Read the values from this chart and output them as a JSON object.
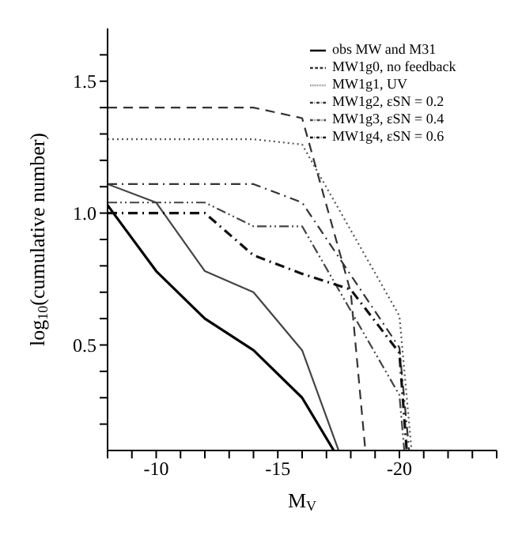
{
  "chart_data": {
    "type": "line",
    "xlabel": "M$_{V}$",
    "ylabel": "log$_{10}$(cumulative number)",
    "xlim": [
      -8,
      -24
    ],
    "ylim": [
      0.1,
      1.7
    ],
    "xticks": [
      {
        "value": -8,
        "label": null
      },
      {
        "value": -9,
        "label": null
      },
      -10,
      {
        "value": -11,
        "label": null
      },
      {
        "value": -12,
        "label": null
      },
      {
        "value": -13,
        "label": null
      },
      {
        "value": -14,
        "label": null
      },
      -15,
      {
        "value": -16,
        "label": null
      },
      {
        "value": -17,
        "label": null
      },
      {
        "value": -18,
        "label": null
      },
      {
        "value": -19,
        "label": null
      },
      -20,
      {
        "value": -21,
        "label": null
      },
      {
        "value": -22,
        "label": null
      },
      {
        "value": -23,
        "label": null
      },
      {
        "value": -24,
        "label": null
      }
    ],
    "yticks": [
      {
        "value": 0.2,
        "label": null
      },
      {
        "value": 0.3,
        "label": null
      },
      {
        "value": 0.4,
        "label": null
      },
      0.5,
      {
        "value": 0.6,
        "label": null
      },
      {
        "value": 0.7,
        "label": null
      },
      {
        "value": 0.8,
        "label": null
      },
      {
        "value": 0.9,
        "label": null
      },
      {
        "value": 1,
        "label": "1.0"
      },
      {
        "value": 1.1,
        "label": null
      },
      {
        "value": 1.2,
        "label": null
      },
      {
        "value": 1.3,
        "label": null
      },
      {
        "value": 1.4,
        "label": null
      },
      1.5,
      {
        "value": 1.6,
        "label": null
      }
    ],
    "grid": false,
    "legend": "top right",
    "marker": "none",
    "series": [
      {
        "name": "obs MW and M31",
        "color": "#000000",
        "line_style": "solid",
        "x": [
          -8,
          -10,
          -12,
          -14,
          -16,
          -17.3
        ],
        "values": [
          1.03,
          0.78,
          0.6,
          0.48,
          0.3,
          0.1
        ]
      },
      {
        "color": "#444444",
        "line_style": "solid",
        "x": [
          -8,
          -10,
          -12,
          -14,
          -16,
          -17.5
        ],
        "values": [
          1.11,
          1.04,
          0.78,
          0.7,
          0.48,
          0.1
        ]
      },
      {
        "name": "MW1g0, no feedback",
        "color": "#333333",
        "line_style": "dashed",
        "x": [
          -8,
          -14,
          -16,
          -18,
          -18.6
        ],
        "values": [
          1.4,
          1.4,
          1.36,
          0.7,
          0.1
        ]
      },
      {
        "name": "MW1g1, UV",
        "color": "#555555",
        "line_style": "dotted",
        "x": [
          -8,
          -14,
          -16,
          -20,
          -20.5
        ],
        "values": [
          1.28,
          1.28,
          1.26,
          0.61,
          0.1
        ]
      },
      {
        "name": "MW1g2, εSN = 0.2",
        "color": "#333333",
        "line_style": "dashdot",
        "x": [
          -8,
          -14,
          -16,
          -20,
          -20.4
        ],
        "values": [
          1.11,
          1.11,
          1.04,
          0.49,
          0.1
        ]
      },
      {
        "name": "MW1g3, εSN = 0.4",
        "color": "#444444",
        "line_style": "dashdotdot",
        "x": [
          -8,
          -12,
          -14,
          -16,
          -20,
          -20.2
        ],
        "values": [
          1.04,
          1.04,
          0.95,
          0.95,
          0.31,
          0.1
        ]
      },
      {
        "name": "MW1g4, εSN = 0.6",
        "color": "#111111",
        "line_style": "dashdot",
        "x": [
          -8,
          -12,
          -14,
          -16,
          -18,
          -20,
          -20.3
        ],
        "values": [
          1,
          1,
          0.84,
          0.77,
          0.71,
          0.47,
          0.1
        ]
      }
    ]
  }
}
